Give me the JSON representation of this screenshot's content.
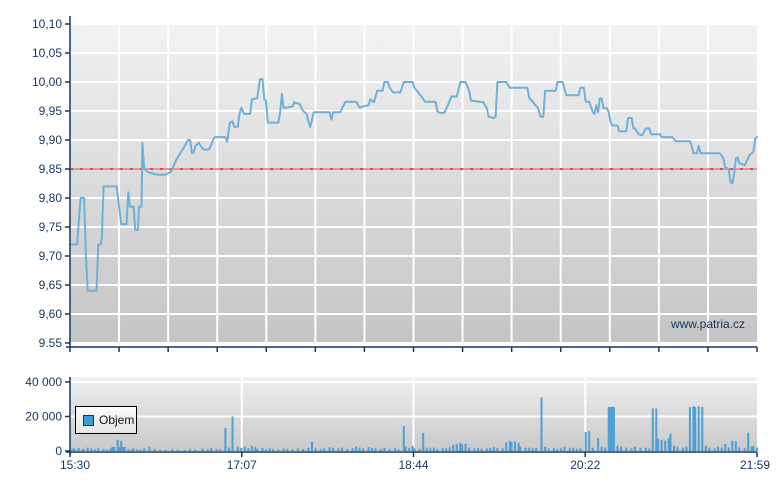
{
  "watermark": "www.patria.cz",
  "legend": {
    "label": "Objem"
  },
  "colors": {
    "axis": "#17375E",
    "label": "#17375E",
    "grid": "#FFFFFF",
    "plot_bg_top": "#F2F2F2",
    "plot_bg_bottom": "#C4C4C4",
    "vol_bg_top": "#EFEFEF",
    "vol_bg_bottom": "#C9C9C9",
    "price_line": "#6FB0D8",
    "volume_bar": "#4E9FD3",
    "ref_line_base": "#E8938C",
    "ref_line_dash": "#CE544C"
  },
  "chart_data": [
    {
      "type": "line",
      "name": "price",
      "title": "",
      "xlabel": "",
      "ylabel": "",
      "grid": true,
      "x_range_minutes": [
        0,
        389
      ],
      "x_tick_labels": [
        "15:30",
        "17:07",
        "18:44",
        "20:22",
        "21:59"
      ],
      "ylim": [
        9.55,
        10.1
      ],
      "y_tick_step": 0.05,
      "y_tick_labels": [
        "10,10",
        "10,05",
        "10,00",
        "9,95",
        "9,90",
        "9,85",
        "9,80",
        "9,75",
        "9,70",
        "9,65",
        "9,60",
        "9.55"
      ],
      "reference_line": 9.85,
      "points": [
        [
          0,
          9.72
        ],
        [
          4,
          9.72
        ],
        [
          6,
          9.8
        ],
        [
          8,
          9.8
        ],
        [
          9,
          9.7
        ],
        [
          10,
          9.64
        ],
        [
          15,
          9.64
        ],
        [
          16,
          9.72
        ],
        [
          17.5,
          9.72
        ],
        [
          18,
          9.73
        ],
        [
          19,
          9.82
        ],
        [
          26.5,
          9.82
        ],
        [
          28,
          9.78
        ],
        [
          29,
          9.755
        ],
        [
          32,
          9.755
        ],
        [
          33,
          9.81
        ],
        [
          34,
          9.785
        ],
        [
          36,
          9.785
        ],
        [
          37,
          9.745
        ],
        [
          38.5,
          9.745
        ],
        [
          39,
          9.785
        ],
        [
          40.5,
          9.785
        ],
        [
          41,
          9.895
        ],
        [
          42,
          9.85
        ],
        [
          44,
          9.845
        ],
        [
          46,
          9.843
        ],
        [
          50,
          9.84
        ],
        [
          54,
          9.84
        ],
        [
          57,
          9.845
        ],
        [
          58,
          9.85
        ],
        [
          60,
          9.865
        ],
        [
          62,
          9.875
        ],
        [
          65,
          9.89
        ],
        [
          66.8,
          9.9
        ],
        [
          68,
          9.9
        ],
        [
          69,
          9.878
        ],
        [
          70,
          9.878
        ],
        [
          71,
          9.89
        ],
        [
          73,
          9.895
        ],
        [
          75,
          9.885
        ],
        [
          77,
          9.883
        ],
        [
          79,
          9.885
        ],
        [
          81,
          9.9
        ],
        [
          82,
          9.905
        ],
        [
          88,
          9.905
        ],
        [
          89,
          9.897
        ],
        [
          90.5,
          9.93
        ],
        [
          92,
          9.932
        ],
        [
          93,
          9.923
        ],
        [
          95,
          9.923
        ],
        [
          96,
          9.945
        ],
        [
          97,
          9.956
        ],
        [
          98.5,
          9.945
        ],
        [
          102,
          9.945
        ],
        [
          103,
          9.97
        ],
        [
          106,
          9.972
        ],
        [
          107.5,
          10.005
        ],
        [
          109,
          10.005
        ],
        [
          110,
          9.97
        ],
        [
          111,
          9.968
        ],
        [
          112,
          9.93
        ],
        [
          118,
          9.93
        ],
        [
          119,
          9.948
        ],
        [
          120,
          9.98
        ],
        [
          121,
          9.955
        ],
        [
          126,
          9.958
        ],
        [
          127,
          9.965
        ],
        [
          130,
          9.962
        ],
        [
          132,
          9.95
        ],
        [
          134,
          9.945
        ],
        [
          135,
          9.932
        ],
        [
          136,
          9.922
        ],
        [
          138,
          9.948
        ],
        [
          147,
          9.948
        ],
        [
          148,
          9.935
        ],
        [
          149,
          9.948
        ],
        [
          153,
          9.948
        ],
        [
          156,
          9.966
        ],
        [
          162,
          9.966
        ],
        [
          164,
          9.956
        ],
        [
          166,
          9.958
        ],
        [
          169,
          9.96
        ],
        [
          170,
          9.97
        ],
        [
          172,
          9.965
        ],
        [
          174,
          9.985
        ],
        [
          177,
          9.985
        ],
        [
          178,
          10.0
        ],
        [
          180,
          10.0
        ],
        [
          181,
          9.99
        ],
        [
          183,
          9.982
        ],
        [
          187,
          9.982
        ],
        [
          189,
          10.0
        ],
        [
          191,
          10.0
        ],
        [
          194,
          10.0
        ],
        [
          195,
          9.99
        ],
        [
          197,
          9.983
        ],
        [
          199,
          9.975
        ],
        [
          201,
          9.966
        ],
        [
          207,
          9.966
        ],
        [
          208,
          9.95
        ],
        [
          209,
          9.947
        ],
        [
          212,
          9.947
        ],
        [
          214,
          9.96
        ],
        [
          216,
          9.975
        ],
        [
          219,
          9.975
        ],
        [
          221,
          10.0
        ],
        [
          224,
          10.0
        ],
        [
          226,
          9.985
        ],
        [
          227,
          9.968
        ],
        [
          234,
          9.965
        ],
        [
          236,
          9.955
        ],
        [
          237,
          9.94
        ],
        [
          240,
          9.938
        ],
        [
          241,
          9.94
        ],
        [
          242,
          10.0
        ],
        [
          247,
          10.0
        ],
        [
          249,
          9.99
        ],
        [
          259,
          9.99
        ],
        [
          260,
          9.973
        ],
        [
          265,
          9.955
        ],
        [
          266.5,
          9.94
        ],
        [
          268,
          9.94
        ],
        [
          269,
          9.985
        ],
        [
          275,
          9.985
        ],
        [
          276,
          10.0
        ],
        [
          279,
          10.0
        ],
        [
          281,
          9.977
        ],
        [
          288,
          9.977
        ],
        [
          289,
          9.99
        ],
        [
          291,
          9.99
        ],
        [
          292,
          9.966
        ],
        [
          294,
          9.966
        ],
        [
          296,
          9.948
        ],
        [
          297,
          9.945
        ],
        [
          298,
          9.96
        ],
        [
          299,
          9.948
        ],
        [
          300,
          9.972
        ],
        [
          301,
          9.972
        ],
        [
          302,
          9.955
        ],
        [
          304,
          9.955
        ],
        [
          305,
          9.948
        ],
        [
          306,
          9.932
        ],
        [
          307,
          9.925
        ],
        [
          310,
          9.925
        ],
        [
          311,
          9.915
        ],
        [
          315,
          9.915
        ],
        [
          316,
          9.938
        ],
        [
          318,
          9.938
        ],
        [
          319,
          9.92
        ],
        [
          320,
          9.92
        ],
        [
          322,
          9.91
        ],
        [
          324,
          9.908
        ],
        [
          326,
          9.92
        ],
        [
          328,
          9.92
        ],
        [
          329,
          9.91
        ],
        [
          334,
          9.91
        ],
        [
          335,
          9.905
        ],
        [
          341,
          9.905
        ],
        [
          343,
          9.898
        ],
        [
          351,
          9.898
        ],
        [
          352,
          9.89
        ],
        [
          353,
          9.877
        ],
        [
          355,
          9.877
        ],
        [
          356,
          9.89
        ],
        [
          357,
          9.877
        ],
        [
          368,
          9.877
        ],
        [
          370,
          9.868
        ],
        [
          371,
          9.853
        ],
        [
          373,
          9.85
        ],
        [
          374,
          9.828
        ],
        [
          375,
          9.825
        ],
        [
          376,
          9.84
        ],
        [
          377,
          9.868
        ],
        [
          378,
          9.87
        ],
        [
          379,
          9.86
        ],
        [
          381,
          9.858
        ],
        [
          382,
          9.856
        ],
        [
          383,
          9.862
        ],
        [
          385,
          9.875
        ],
        [
          387,
          9.88
        ],
        [
          388,
          9.902
        ],
        [
          389,
          9.905
        ]
      ]
    },
    {
      "type": "bar",
      "name": "volume",
      "legend": "Objem",
      "ylim": [
        0,
        40000
      ],
      "y_tick_labels": [
        "40 000",
        "20 000",
        "0"
      ],
      "y_tick_values": [
        40000,
        20000,
        0
      ],
      "bars": [
        [
          1,
          800
        ],
        [
          2,
          1500
        ],
        [
          3,
          1000
        ],
        [
          5,
          1800
        ],
        [
          7,
          1200
        ],
        [
          8,
          900
        ],
        [
          10,
          2000
        ],
        [
          12,
          1500
        ],
        [
          14,
          1000
        ],
        [
          16,
          1800
        ],
        [
          19,
          1200
        ],
        [
          21,
          900
        ],
        [
          23,
          1500
        ],
        [
          24,
          2300
        ],
        [
          25,
          2300
        ],
        [
          27,
          6500
        ],
        [
          28,
          2300
        ],
        [
          29,
          5800
        ],
        [
          30,
          2300
        ],
        [
          31,
          2300
        ],
        [
          33,
          1200
        ],
        [
          35,
          900
        ],
        [
          36,
          1500
        ],
        [
          38,
          1000
        ],
        [
          40,
          800
        ],
        [
          42,
          1500
        ],
        [
          45,
          2500
        ],
        [
          48,
          1200
        ],
        [
          51,
          800
        ],
        [
          54,
          600
        ],
        [
          58,
          1000
        ],
        [
          61,
          800
        ],
        [
          65,
          600
        ],
        [
          68,
          1200
        ],
        [
          71,
          800
        ],
        [
          75,
          1500
        ],
        [
          78,
          1000
        ],
        [
          80,
          1800
        ],
        [
          83,
          1200
        ],
        [
          85,
          1000
        ],
        [
          88,
          13300
        ],
        [
          90,
          2000
        ],
        [
          92,
          20000
        ],
        [
          95,
          2500
        ],
        [
          97,
          1800
        ],
        [
          99,
          2500
        ],
        [
          101,
          1500
        ],
        [
          103,
          3000
        ],
        [
          105,
          2200
        ],
        [
          106,
          1200
        ],
        [
          109,
          1800
        ],
        [
          111,
          1000
        ],
        [
          113,
          1500
        ],
        [
          115,
          1000
        ],
        [
          118,
          800
        ],
        [
          121,
          1500
        ],
        [
          123,
          1200
        ],
        [
          126,
          1000
        ],
        [
          129,
          1500
        ],
        [
          132,
          1200
        ],
        [
          135,
          1800
        ],
        [
          137,
          5500
        ],
        [
          139,
          1500
        ],
        [
          142,
          1000
        ],
        [
          144,
          1500
        ],
        [
          147,
          2200
        ],
        [
          149,
          1800
        ],
        [
          152,
          1500
        ],
        [
          154,
          2000
        ],
        [
          157,
          1200
        ],
        [
          160,
          1500
        ],
        [
          162,
          2500
        ],
        [
          164,
          2000
        ],
        [
          166,
          1500
        ],
        [
          169,
          2200
        ],
        [
          171,
          1800
        ],
        [
          173,
          1500
        ],
        [
          176,
          1200
        ],
        [
          178,
          1800
        ],
        [
          181,
          1200
        ],
        [
          184,
          1500
        ],
        [
          186,
          1000
        ],
        [
          189,
          14400
        ],
        [
          190,
          2500
        ],
        [
          192,
          1800
        ],
        [
          194,
          3000
        ],
        [
          195,
          1500
        ],
        [
          198,
          1200
        ],
        [
          200,
          10500
        ],
        [
          202,
          2000
        ],
        [
          204,
          1500
        ],
        [
          206,
          2000
        ],
        [
          208,
          1200
        ],
        [
          211,
          1800
        ],
        [
          213,
          1500
        ],
        [
          215,
          2200
        ],
        [
          217,
          3500
        ],
        [
          219,
          4000
        ],
        [
          221,
          4700
        ],
        [
          222,
          3800
        ],
        [
          224,
          4200
        ],
        [
          226,
          2000
        ],
        [
          229,
          1500
        ],
        [
          231,
          1800
        ],
        [
          233,
          1200
        ],
        [
          236,
          1500
        ],
        [
          238,
          1800
        ],
        [
          240,
          2200
        ],
        [
          242,
          1800
        ],
        [
          245,
          1500
        ],
        [
          247,
          5000
        ],
        [
          249,
          5900
        ],
        [
          250,
          5200
        ],
        [
          252,
          5500
        ],
        [
          254,
          4800
        ],
        [
          255,
          2500
        ],
        [
          258,
          1800
        ],
        [
          260,
          2000
        ],
        [
          262,
          1500
        ],
        [
          264,
          1800
        ],
        [
          267,
          31000
        ],
        [
          269,
          2500
        ],
        [
          271,
          1500
        ],
        [
          274,
          1800
        ],
        [
          276,
          1200
        ],
        [
          278,
          1500
        ],
        [
          280,
          2500
        ],
        [
          283,
          1500
        ],
        [
          285,
          2000
        ],
        [
          287,
          1200
        ],
        [
          289,
          1500
        ],
        [
          292,
          11000
        ],
        [
          294,
          11500
        ],
        [
          296,
          2000
        ],
        [
          299,
          7600
        ],
        [
          301,
          2500
        ],
        [
          303,
          2000
        ],
        [
          305,
          25500
        ],
        [
          306,
          25500
        ],
        [
          307,
          25800
        ],
        [
          308,
          25500
        ],
        [
          310,
          3000
        ],
        [
          312,
          2500
        ],
        [
          315,
          2000
        ],
        [
          318,
          1500
        ],
        [
          320,
          2500
        ],
        [
          323,
          2000
        ],
        [
          326,
          1800
        ],
        [
          328,
          1500
        ],
        [
          330,
          24700
        ],
        [
          332,
          24700
        ],
        [
          333,
          7000
        ],
        [
          335,
          6500
        ],
        [
          337,
          6000
        ],
        [
          339,
          7500
        ],
        [
          340,
          10000
        ],
        [
          342,
          3000
        ],
        [
          344,
          2500
        ],
        [
          347,
          2000
        ],
        [
          349,
          2500
        ],
        [
          351,
          25500
        ],
        [
          353,
          25900
        ],
        [
          354,
          25500
        ],
        [
          356,
          25900
        ],
        [
          358,
          25500
        ],
        [
          360,
          3000
        ],
        [
          362,
          2000
        ],
        [
          365,
          1500
        ],
        [
          367,
          2500
        ],
        [
          369,
          2000
        ],
        [
          371,
          4100
        ],
        [
          373,
          2000
        ],
        [
          375,
          5900
        ],
        [
          377,
          5500
        ],
        [
          379,
          2000
        ],
        [
          382,
          1500
        ],
        [
          384,
          10600
        ],
        [
          386,
          2500
        ],
        [
          387,
          3000
        ],
        [
          389,
          2000
        ]
      ]
    }
  ]
}
